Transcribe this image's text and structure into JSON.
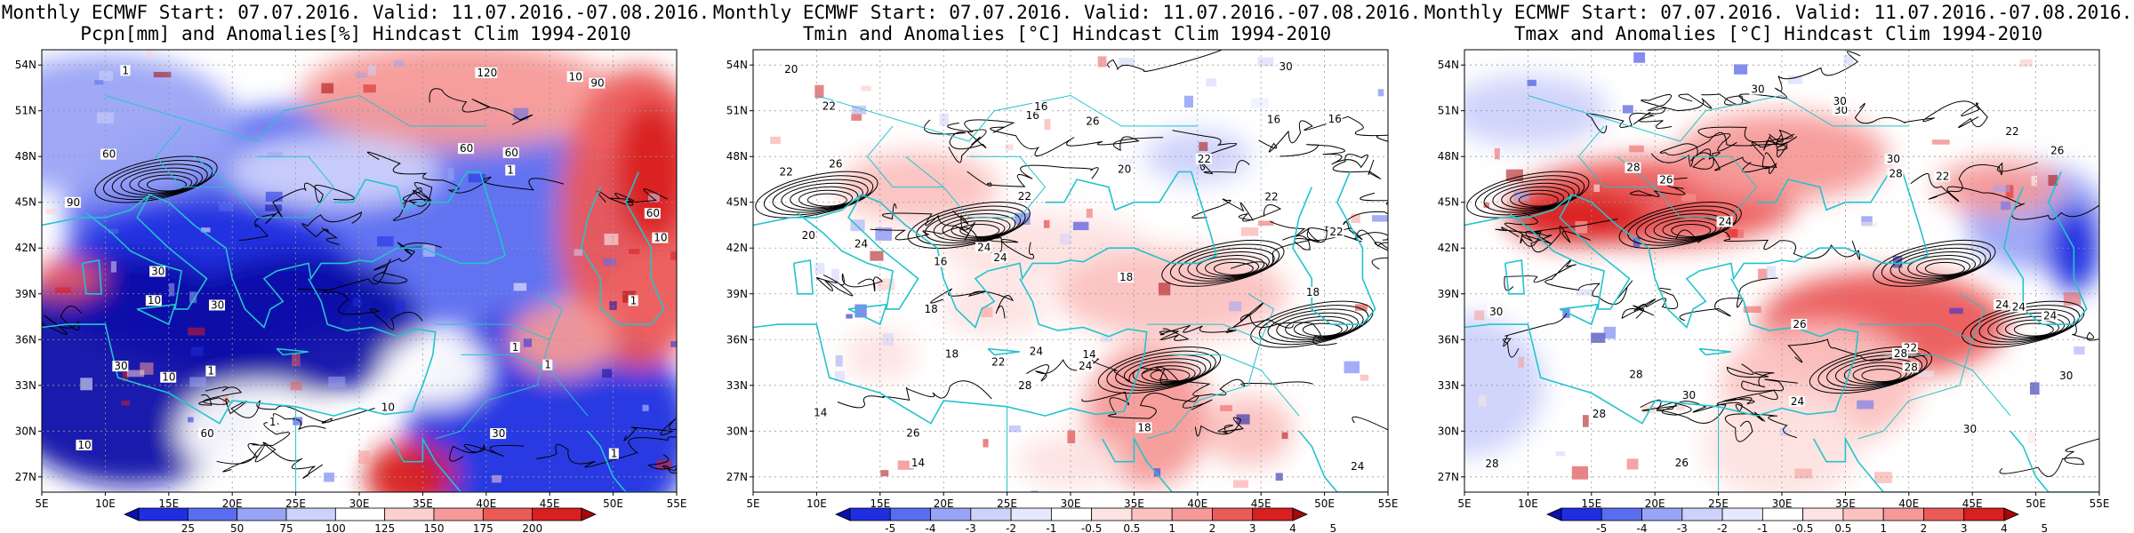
{
  "panels": [
    {
      "title_line1": "Monthly ECMWF Start: 07.07.2016. Valid: 11.07.2016.-07.08.2016.",
      "title_line2": "Pcpn[mm] and Anomalies[%] Hindcast Clim 1994-2010",
      "colorbar_labels": [
        "25",
        "50",
        "75",
        "100",
        "125",
        "150",
        "175",
        "200"
      ],
      "colorbar_colors": [
        "#0a10a8",
        "#1f2ee0",
        "#5a6cf0",
        "#9aa4f6",
        "#cdd2fb",
        "#ffffff",
        "#fbd0cf",
        "#f59a98",
        "#ec5a58",
        "#d91f1f",
        "#a50808"
      ],
      "contour_labels": [
        "60",
        "60",
        "30",
        "90",
        "120",
        "90",
        "60",
        "60",
        "30",
        "10",
        "30",
        "10",
        "1",
        "10",
        "10",
        "1",
        "1",
        "10",
        "1",
        "1",
        "1",
        "1",
        "1",
        "30",
        "60",
        "10"
      ],
      "pattern": "precip"
    },
    {
      "title_line1": "Monthly ECMWF Start: 07.07.2016. Valid: 11.07.2016.-07.08.2016.",
      "title_line2": "Tmin and Anomalies [°C] Hindcast Clim 1994-2010",
      "colorbar_labels": [
        "-5",
        "-4",
        "-3",
        "-2",
        "-1",
        "-0.5",
        "0.5",
        "1",
        "2",
        "3",
        "4",
        "5"
      ],
      "colorbar_colors": [
        "#0a10a8",
        "#1f2ee0",
        "#5a6cf0",
        "#9aa4f6",
        "#cdd2fb",
        "#e6e9fd",
        "#ffffff",
        "#fde3e2",
        "#fbc2c0",
        "#f59a98",
        "#ec5a58",
        "#d91f1f",
        "#a50808"
      ],
      "contour_labels": [
        "14",
        "16",
        "16",
        "18",
        "14",
        "16",
        "18",
        "18",
        "20",
        "22",
        "22",
        "16",
        "18",
        "16",
        "24",
        "14",
        "22",
        "20",
        "18",
        "24",
        "24",
        "22",
        "26",
        "22",
        "24",
        "26",
        "20",
        "22",
        "24",
        "28",
        "30",
        "26",
        "24",
        "22"
      ],
      "pattern": "tmin"
    },
    {
      "title_line1": "Monthly ECMWF Start: 07.07.2016. Valid: 11.07.2016.-07.08.2016.",
      "title_line2": "Tmax and Anomalies [°C] Hindcast Clim 1994-2010",
      "colorbar_labels": [
        "-5",
        "-4",
        "-3",
        "-2",
        "-1",
        "-0.5",
        "0.5",
        "1",
        "2",
        "3",
        "4",
        "5"
      ],
      "colorbar_colors": [
        "#0a10a8",
        "#1f2ee0",
        "#5a6cf0",
        "#9aa4f6",
        "#cdd2fb",
        "#e6e9fd",
        "#ffffff",
        "#fde3e2",
        "#fbc2c0",
        "#f59a98",
        "#ec5a58",
        "#d91f1f",
        "#a50808"
      ],
      "contour_labels": [
        "22",
        "24",
        "26",
        "26",
        "28",
        "22",
        "24",
        "28",
        "30",
        "30",
        "28",
        "26",
        "24",
        "30",
        "28",
        "30",
        "26",
        "30",
        "28",
        "24",
        "28",
        "30",
        "30",
        "28",
        "30",
        "22",
        "24"
      ],
      "pattern": "tmax"
    }
  ],
  "axes": {
    "lat_labels": [
      "54N",
      "51N",
      "48N",
      "45N",
      "42N",
      "39N",
      "36N",
      "33N",
      "30N",
      "27N"
    ],
    "lon_labels": [
      "5E",
      "10E",
      "15E",
      "20E",
      "25E",
      "30E",
      "35E",
      "40E",
      "45E",
      "50E",
      "55E"
    ]
  },
  "colors": {
    "coast": "#22c4cc",
    "contour": "#000000",
    "grid": "#9a9a9a"
  }
}
